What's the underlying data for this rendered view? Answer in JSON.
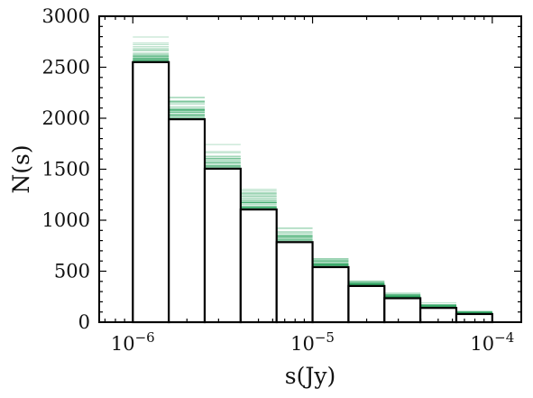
{
  "chart_data": {
    "type": "bar",
    "xlabel": "s(Jy)",
    "ylabel": "N(s)",
    "xscale": "log",
    "xlim": [
      6.5e-07,
      0.000145
    ],
    "ylim": [
      0,
      3000
    ],
    "grid": false,
    "x_ticks": [
      {
        "value": 1e-06,
        "base": "10",
        "exp": "−6"
      },
      {
        "value": 1e-05,
        "base": "10",
        "exp": "−5"
      },
      {
        "value": 0.0001,
        "base": "10",
        "exp": "−4"
      }
    ],
    "y_ticks": [
      {
        "value": 0,
        "label": "0"
      },
      {
        "value": 500,
        "label": "500"
      },
      {
        "value": 1000,
        "label": "1000"
      },
      {
        "value": 1500,
        "label": "1500"
      },
      {
        "value": 2000,
        "label": "2000"
      },
      {
        "value": 2500,
        "label": "2500"
      },
      {
        "value": 3000,
        "label": "3000"
      }
    ],
    "bin_edges": [
      1e-06,
      1.585e-06,
      2.512e-06,
      3.981e-06,
      6.31e-06,
      1e-05,
      1.585e-05,
      2.512e-05,
      3.981e-05,
      6.31e-05,
      0.0001
    ],
    "counts": [
      2550,
      1990,
      1505,
      1105,
      785,
      540,
      355,
      235,
      140,
      80
    ],
    "realization_spread": [
      [
        2170,
        2880
      ],
      [
        1710,
        2290
      ],
      [
        1280,
        1770
      ],
      [
        940,
        1350
      ],
      [
        650,
        970
      ],
      [
        440,
        660
      ],
      [
        270,
        440
      ],
      [
        170,
        300
      ],
      [
        95,
        200
      ],
      [
        45,
        120
      ]
    ],
    "colors": {
      "histogram": "#000000",
      "realizations": "#2ca25f",
      "background": "#ffffff"
    }
  }
}
